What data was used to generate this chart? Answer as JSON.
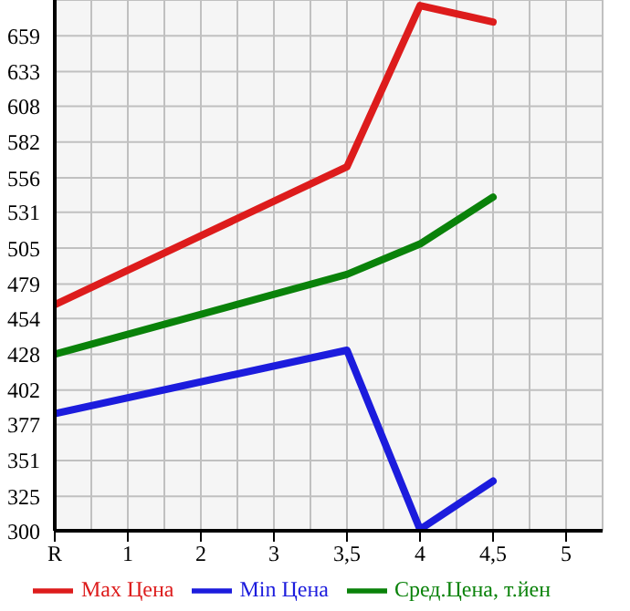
{
  "chart_data": {
    "type": "line",
    "categories": [
      "R",
      "1",
      "2",
      "3",
      "3,5",
      "4",
      "4,5",
      "5"
    ],
    "series": [
      {
        "name": "Max Цена",
        "color": "#dd1c1c",
        "values": [
          464,
          null,
          null,
          null,
          564,
          681,
          669,
          null
        ]
      },
      {
        "name": "Min Цена",
        "color": "#1c1cdd",
        "values": [
          385,
          null,
          null,
          null,
          431,
          301,
          336,
          null
        ]
      },
      {
        "name": "Сред.Цена, т.йен",
        "color": "#0a820a",
        "values": [
          428,
          null,
          null,
          null,
          486,
          508,
          542,
          null
        ]
      }
    ],
    "ylim": [
      300,
      685
    ],
    "yticks": [
      300,
      325,
      351,
      377,
      402,
      428,
      454,
      479,
      505,
      531,
      556,
      582,
      608,
      633,
      659
    ],
    "grid": true,
    "legend": "bottom",
    "marker": "none",
    "line_style": "solid"
  }
}
